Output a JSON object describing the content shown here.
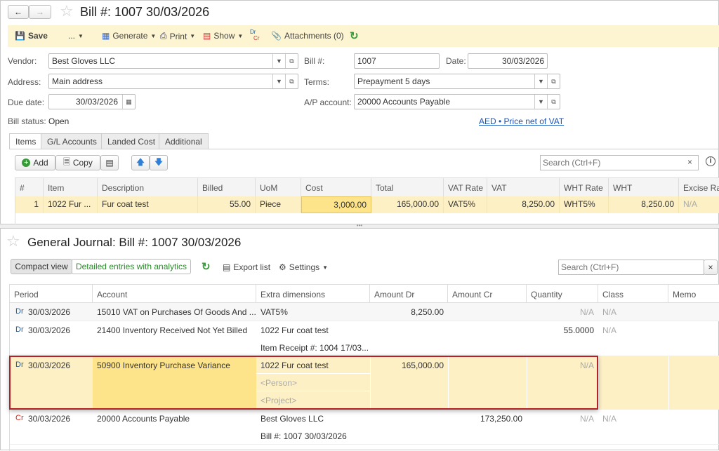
{
  "bill": {
    "title": "Bill #: 1007 30/03/2026",
    "toolbar": {
      "save": "Save",
      "more": "...",
      "generate": "Generate",
      "print": "Print",
      "show": "Show",
      "drcr_dr": "Dr",
      "drcr_cr": "Cr",
      "attachments": "Attachments (0)"
    },
    "vendor_label": "Vendor:",
    "vendor": "Best Gloves LLC",
    "address_label": "Address:",
    "address": "Main address",
    "due_label": "Due date:",
    "due": "30/03/2026",
    "status_label": "Bill status:",
    "status": "Open",
    "billno_label": "Bill #:",
    "billno": "1007",
    "date_label": "Date:",
    "date": "30/03/2026",
    "terms_label": "Terms:",
    "terms": "Prepayment 5 days",
    "ap_label": "A/P account:",
    "ap": "20000 Accounts Payable",
    "currency_link": "AED • Price net of VAT",
    "tabs": [
      "Items",
      "G/L Accounts",
      "Landed Cost",
      "Additional"
    ],
    "add": "Add",
    "copy": "Copy",
    "search_placeholder": "Search (Ctrl+F)",
    "columns": [
      "#",
      "Item",
      "Description",
      "Billed",
      "UoM",
      "Cost",
      "Total",
      "VAT Rate",
      "VAT",
      "WHT Rate",
      "WHT",
      "Excise Ra"
    ],
    "rows": [
      [
        "1",
        "1022 Fur ...",
        "Fur coat test",
        "55.00",
        "Piece",
        "3,000.00",
        "165,000.00",
        "VAT5%",
        "8,250.00",
        "WHT5%",
        "8,250.00",
        "N/A"
      ]
    ]
  },
  "journal": {
    "title": "General Journal: Bill #: 1007 30/03/2026",
    "compact": "Compact view",
    "detailed": "Detailed entries with analytics",
    "export": "Export list",
    "settings": "Settings",
    "search_placeholder": "Search (Ctrl+F)",
    "columns": [
      "Period",
      "Account",
      "Extra dimensions",
      "Amount Dr",
      "Amount Cr",
      "Quantity",
      "Class",
      "Memo"
    ],
    "rows": [
      {
        "type": "Dr",
        "period": "30/03/2026",
        "account": "15010 VAT on Purchases Of Goods And ...",
        "extra": [
          "VAT5%"
        ],
        "dr": "8,250.00",
        "cr": "",
        "qty": "N/A",
        "cls": "N/A"
      },
      {
        "type": "Dr",
        "period": "30/03/2026",
        "account": "21400 Inventory Received Not Yet Billed",
        "extra": [
          "1022 Fur coat test",
          "Item Receipt #: 1004 17/03..."
        ],
        "dr": "",
        "cr": "",
        "qty": "55.0000",
        "cls": "N/A"
      },
      {
        "type": "Dr",
        "period": "30/03/2026",
        "account": "50900 Inventory Purchase Variance",
        "extra": [
          "1022 Fur coat test",
          "<Person>",
          "<Project>"
        ],
        "dr": "165,000.00",
        "cr": "",
        "qty": "N/A",
        "cls": ""
      },
      {
        "type": "Cr",
        "period": "30/03/2026",
        "account": "20000 Accounts Payable",
        "extra": [
          "Best Gloves LLC",
          "Bill #: 1007 30/03/2026"
        ],
        "dr": "",
        "cr": "173,250.00",
        "qty": "N/A",
        "cls": "N/A"
      }
    ]
  },
  "colors": {
    "toolbar_bg": "#fdf5d2",
    "selected_row": "#fdf0c4",
    "selected_cell": "#fde38a",
    "highlight_border": "#b22222",
    "dr": "#2a5d8f",
    "cr": "#d9261c",
    "link": "#1a56b8"
  }
}
